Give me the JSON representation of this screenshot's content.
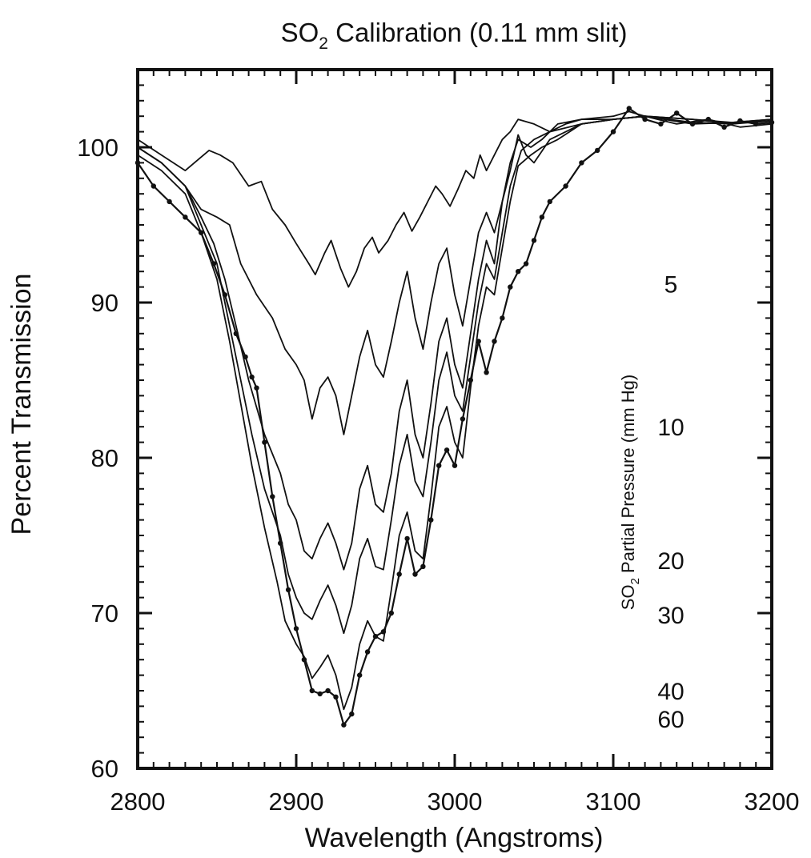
{
  "chart_data": {
    "type": "line",
    "title_main": "SO",
    "title_sub": "2",
    "title_rest": " Calibration (0.11 mm slit)",
    "xlabel": "Wavelength (Angstroms)",
    "ylabel": "Percent Transmission",
    "xlim": [
      2800,
      3200
    ],
    "ylim": [
      60,
      105
    ],
    "x_ticks": [
      {
        "value": 2800,
        "label": "2800"
      },
      {
        "value": 2900,
        "label": "2900"
      },
      {
        "value": 3000,
        "label": "3000"
      },
      {
        "value": 3100,
        "label": "3100"
      },
      {
        "value": 3200,
        "label": "3200"
      }
    ],
    "y_ticks": [
      {
        "value": 60,
        "label": "60"
      },
      {
        "value": 70,
        "label": "70"
      },
      {
        "value": 80,
        "label": "80"
      },
      {
        "value": 90,
        "label": "90"
      },
      {
        "value": 100,
        "label": "100"
      }
    ],
    "grid": false,
    "right_axis_label_main": "SO",
    "right_axis_label_sub": "2",
    "right_axis_label_rest": " Partial Pressure (mm Hg)",
    "pressure_labels": [
      {
        "label": "5",
        "y": 91.2
      },
      {
        "label": "10",
        "y": 82.0
      },
      {
        "label": "20",
        "y": 73.4
      },
      {
        "label": "30",
        "y": 69.9
      },
      {
        "label": "40",
        "y": 65.0
      },
      {
        "label": "60",
        "y": 63.2
      }
    ],
    "series": [
      {
        "pressure": 5,
        "markers": false,
        "x": [
          2800,
          2815,
          2830,
          2845,
          2852,
          2860,
          2870,
          2878,
          2885,
          2893,
          2900,
          2908,
          2912,
          2918,
          2922,
          2928,
          2933,
          2938,
          2943,
          2948,
          2952,
          2958,
          2963,
          2968,
          2973,
          2978,
          2983,
          2988,
          2992,
          2997,
          3002,
          3007,
          3012,
          3016,
          3020,
          3025,
          3030,
          3035,
          3040,
          3050,
          3060,
          3070,
          3080,
          3100,
          3110,
          3120,
          3140,
          3160,
          3180,
          3200
        ],
        "y": [
          100.5,
          99.5,
          98.5,
          99.8,
          99.5,
          99,
          97.5,
          97.8,
          96,
          95,
          93.8,
          92.5,
          91.8,
          93.2,
          94,
          92.2,
          91,
          92,
          93.5,
          94.2,
          93.2,
          94,
          95,
          95.8,
          94.6,
          95.5,
          96.5,
          97.5,
          97,
          96.2,
          97.3,
          98.5,
          98,
          99.5,
          98.5,
          99.5,
          100.5,
          101,
          101.8,
          101.5,
          101,
          101.5,
          101.8,
          102,
          102.3,
          102,
          101.5,
          101.8,
          101.3,
          101.5
        ]
      },
      {
        "pressure": 10,
        "markers": false,
        "x": [
          2800,
          2815,
          2830,
          2840,
          2850,
          2858,
          2865,
          2875,
          2885,
          2893,
          2900,
          2905,
          2910,
          2915,
          2920,
          2925,
          2930,
          2935,
          2940,
          2945,
          2950,
          2955,
          2960,
          2965,
          2970,
          2975,
          2980,
          2985,
          2990,
          2995,
          3000,
          3005,
          3010,
          3015,
          3020,
          3025,
          3030,
          3035,
          3040,
          3045,
          3050,
          3060,
          3080,
          3100,
          3120,
          3150,
          3175,
          3200
        ],
        "y": [
          100,
          99,
          97.5,
          96,
          95.5,
          95,
          92.5,
          90.5,
          89,
          87,
          86,
          85,
          82.5,
          84.5,
          85.2,
          84,
          81.5,
          84,
          86.5,
          88.2,
          86,
          85.2,
          87.5,
          90,
          92,
          89,
          87,
          90,
          92.5,
          93.5,
          90.5,
          88.5,
          91.5,
          94.5,
          95.8,
          94.5,
          96.5,
          98.5,
          100.8,
          99.5,
          99,
          100.5,
          101.5,
          101.8,
          102,
          101.8,
          101.5,
          101.8
        ]
      },
      {
        "pressure": 20,
        "markers": false,
        "x": [
          2800,
          2815,
          2830,
          2840,
          2848,
          2855,
          2862,
          2870,
          2880,
          2890,
          2895,
          2900,
          2905,
          2910,
          2915,
          2920,
          2925,
          2930,
          2935,
          2940,
          2945,
          2950,
          2955,
          2960,
          2965,
          2970,
          2975,
          2980,
          2985,
          2990,
          2995,
          3000,
          3005,
          3010,
          3015,
          3020,
          3025,
          3030,
          3035,
          3040,
          3048,
          3055,
          3065,
          3080,
          3100,
          3120,
          3150,
          3175,
          3200
        ],
        "y": [
          100,
          99,
          97.5,
          95.5,
          93.8,
          91.5,
          88.5,
          85,
          81.5,
          79,
          77,
          76,
          74,
          73.5,
          74.8,
          75.8,
          74.5,
          72.8,
          74.5,
          78,
          79.5,
          77,
          76.5,
          79,
          83,
          85,
          81.5,
          80,
          83.5,
          87.5,
          89,
          86,
          84.5,
          88,
          91.5,
          94,
          92.5,
          96.5,
          99,
          100.5,
          100,
          100.5,
          101.5,
          101.8,
          101.8,
          102,
          101.5,
          101.6,
          101.8
        ]
      },
      {
        "pressure": 30,
        "markers": false,
        "x": [
          2800,
          2815,
          2830,
          2840,
          2850,
          2858,
          2865,
          2872,
          2880,
          2890,
          2895,
          2900,
          2905,
          2910,
          2915,
          2920,
          2925,
          2930,
          2935,
          2940,
          2945,
          2950,
          2955,
          2960,
          2965,
          2970,
          2975,
          2980,
          2985,
          2990,
          2995,
          3000,
          3005,
          3010,
          3015,
          3020,
          3025,
          3030,
          3035,
          3042,
          3050,
          3060,
          3080,
          3100,
          3120,
          3150,
          3175,
          3200
        ],
        "y": [
          100,
          99,
          97.5,
          95,
          92.5,
          88.5,
          85,
          81.5,
          78,
          75,
          72.5,
          71,
          70,
          69.6,
          70.8,
          71.8,
          70.5,
          68.7,
          70.5,
          73.5,
          74.8,
          73,
          72.8,
          76,
          79.5,
          81.5,
          78.5,
          77.5,
          81,
          85,
          86.8,
          84,
          83,
          86.5,
          90,
          92.5,
          91.5,
          94.5,
          97.5,
          99.8,
          100.5,
          101,
          101.5,
          101.8,
          102,
          101.8,
          101.6,
          101.8
        ]
      },
      {
        "pressure": 40,
        "markers": false,
        "x": [
          2800,
          2815,
          2830,
          2840,
          2850,
          2858,
          2865,
          2872,
          2880,
          2888,
          2893,
          2900,
          2905,
          2910,
          2915,
          2920,
          2925,
          2930,
          2935,
          2940,
          2945,
          2950,
          2955,
          2960,
          2965,
          2970,
          2975,
          2980,
          2985,
          2990,
          2995,
          3000,
          3005,
          3010,
          3015,
          3020,
          3025,
          3030,
          3035,
          3040,
          3048,
          3055,
          3065,
          3080,
          3100,
          3120,
          3150,
          3175,
          3200
        ],
        "y": [
          99.5,
          98.5,
          97,
          94.5,
          91.5,
          87.5,
          83.5,
          79.5,
          75.5,
          72,
          69.5,
          68,
          67.2,
          65.8,
          66.5,
          67.3,
          66,
          63.8,
          65.2,
          68,
          69.5,
          68.5,
          68.2,
          71.5,
          75,
          76.5,
          74,
          73.5,
          77.5,
          82,
          83.3,
          81,
          80,
          84.5,
          88.5,
          91,
          90.5,
          93.5,
          96.5,
          98.8,
          99.5,
          100,
          100.5,
          101.5,
          101.8,
          102,
          101.6,
          101.5,
          101.7
        ]
      },
      {
        "pressure": 60,
        "markers": true,
        "x": [
          2800,
          2810,
          2820,
          2830,
          2840,
          2848,
          2855,
          2862,
          2868,
          2872,
          2875,
          2880,
          2885,
          2890,
          2895,
          2900,
          2905,
          2910,
          2915,
          2920,
          2925,
          2930,
          2935,
          2940,
          2945,
          2950,
          2955,
          2960,
          2965,
          2970,
          2975,
          2980,
          2985,
          2990,
          2995,
          3000,
          3005,
          3010,
          3015,
          3020,
          3025,
          3030,
          3035,
          3040,
          3045,
          3050,
          3055,
          3060,
          3070,
          3080,
          3090,
          3100,
          3110,
          3120,
          3130,
          3140,
          3150,
          3160,
          3170,
          3180,
          3190,
          3200
        ],
        "y": [
          99,
          97.5,
          96.5,
          95.5,
          94.5,
          92.5,
          90.5,
          88,
          86.5,
          85.2,
          84.5,
          81,
          77.5,
          74.5,
          71.5,
          69,
          67,
          65,
          64.8,
          65,
          64.6,
          62.8,
          63.5,
          66,
          67.5,
          68.5,
          68.8,
          70,
          72.5,
          74.8,
          72.5,
          73,
          76,
          79.5,
          80.5,
          79.5,
          82.5,
          85,
          87.5,
          85.5,
          87.5,
          89,
          91,
          92,
          92.5,
          94,
          95.5,
          96.5,
          97.5,
          99,
          99.8,
          101,
          102.5,
          101.8,
          101.5,
          102.2,
          101.5,
          101.8,
          101.3,
          101.7,
          101.5,
          101.6
        ]
      }
    ]
  }
}
